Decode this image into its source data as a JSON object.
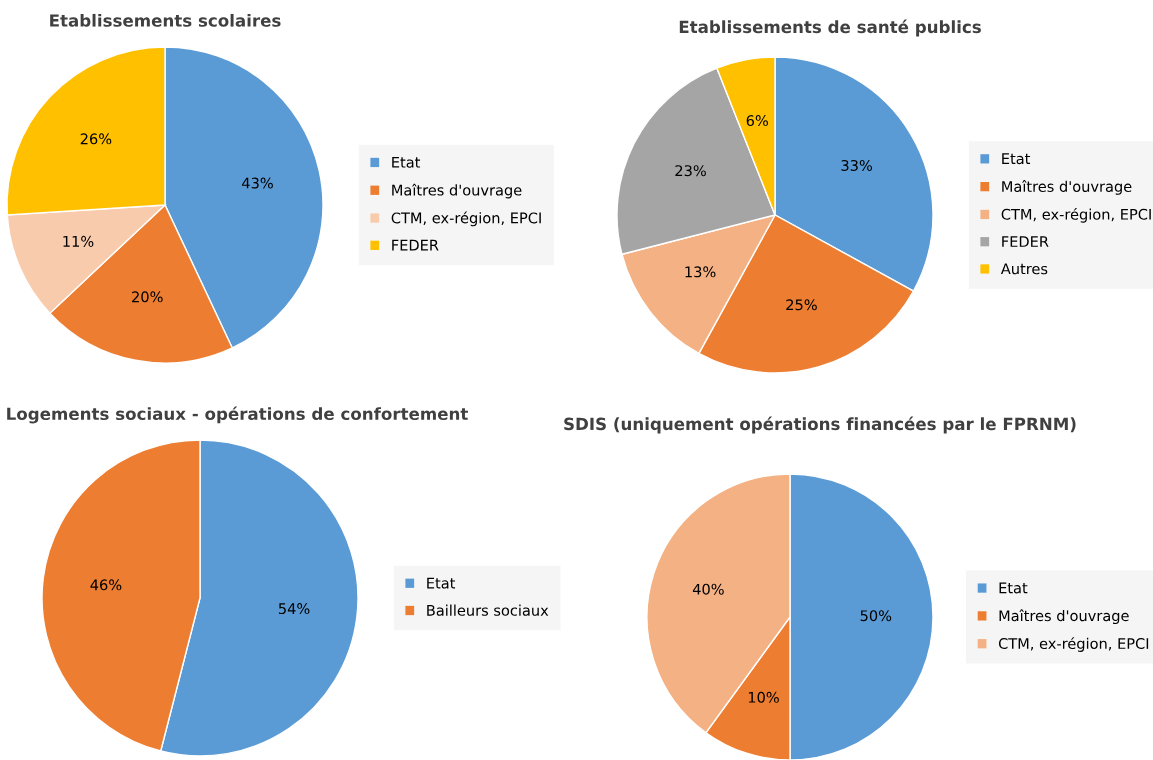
{
  "chart_data": [
    {
      "type": "pie",
      "title": "Etablissements scolaires",
      "categories": [
        "Etat",
        "Maîtres d'ouvrage",
        "CTM, ex-région, EPCI",
        "FEDER"
      ],
      "values": [
        43,
        20,
        11,
        26
      ],
      "value_labels": [
        "43%",
        "20%",
        "11%",
        "26%"
      ],
      "colors": [
        "#5b9bd5",
        "#ed7d31",
        "#f8cbad",
        "#ffc000"
      ],
      "legend": "right"
    },
    {
      "type": "pie",
      "title": "Etablissements de santé publics",
      "categories": [
        "Etat",
        "Maîtres d'ouvrage",
        "CTM, ex-région, EPCI",
        "FEDER",
        "Autres"
      ],
      "values": [
        33,
        25,
        13,
        23,
        6
      ],
      "value_labels": [
        "33%",
        "25%",
        "13%",
        "23%",
        "6%"
      ],
      "colors": [
        "#5b9bd5",
        "#ed7d31",
        "#f4b183",
        "#a5a5a5",
        "#ffc000"
      ],
      "legend": "right"
    },
    {
      "type": "pie",
      "title": "Logements sociaux - opérations de confortement",
      "categories": [
        "Etat",
        "Bailleurs sociaux"
      ],
      "values": [
        54,
        46
      ],
      "value_labels": [
        "54%",
        "46%"
      ],
      "colors": [
        "#5b9bd5",
        "#ed7d31"
      ],
      "legend": "right"
    },
    {
      "type": "pie",
      "title": "SDIS (uniquement opérations financées par le FPRNM)",
      "categories": [
        "Etat",
        "Maîtres d'ouvrage",
        "CTM, ex-région, EPCI"
      ],
      "values": [
        50,
        10,
        40
      ],
      "value_labels": [
        "50%",
        "10%",
        "40%"
      ],
      "colors": [
        "#5b9bd5",
        "#ed7d31",
        "#f4b183"
      ],
      "legend": "right"
    }
  ]
}
